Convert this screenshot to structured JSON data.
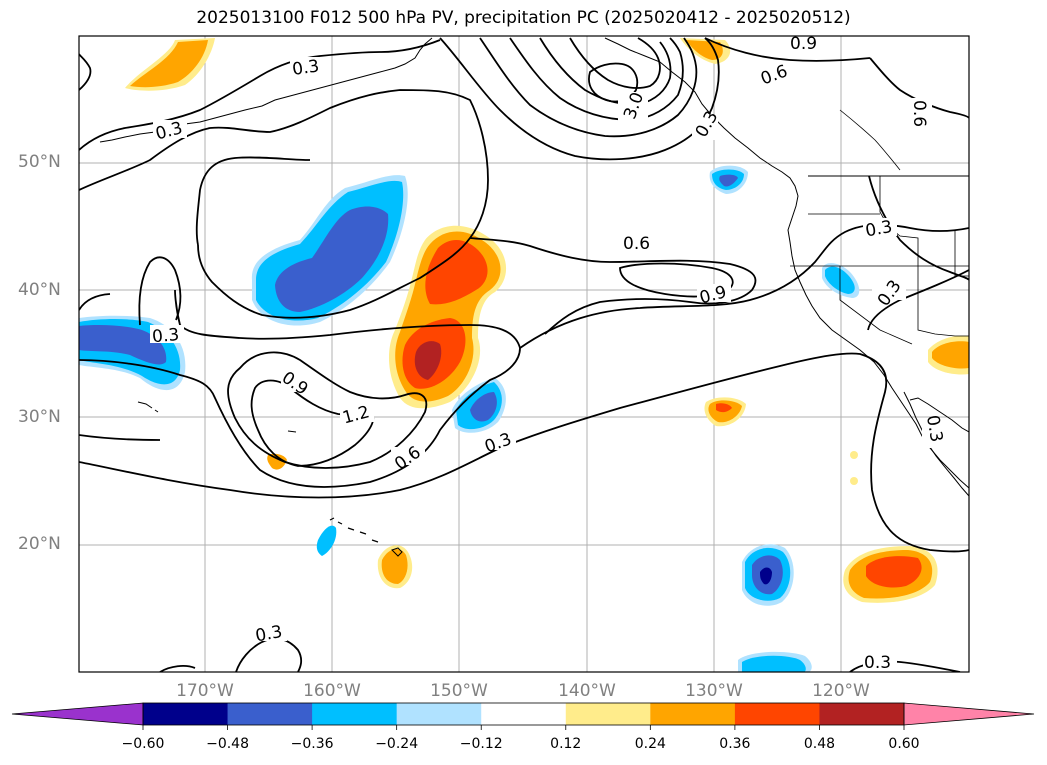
{
  "title": "2025013100 F012 500 hPa PV, precipitation PC (2025020412 - 2025020512)",
  "lat_labels": [
    "50°N",
    "40°N",
    "30°N",
    "20°N"
  ],
  "lon_labels": [
    "170°W",
    "160°W",
    "150°W",
    "140°W",
    "130°W",
    "120°W"
  ],
  "contour_labels": [
    "0.3",
    "0.3",
    "0.3",
    "0.6",
    "0.9",
    "0.9",
    "1.2",
    "0.6",
    "0.3",
    "0.9",
    "0.6",
    "0.3",
    "0.3",
    "0.6",
    "0.3",
    "0.3",
    "3.0",
    "0.3",
    "0.3"
  ],
  "colorbar": {
    "ticks": [
      "−0.60",
      "−0.48",
      "−0.36",
      "−0.24",
      "−0.12",
      "0.12",
      "0.24",
      "0.36",
      "0.48",
      "0.60"
    ],
    "colors": [
      "#9a32cd",
      "#00008b",
      "#3a5fcd",
      "#00bfff",
      "#b0e2ff",
      "#ffffff",
      "#ffec8b",
      "#ffa500",
      "#ff4500",
      "#b22222",
      "#ff83a8"
    ]
  }
}
